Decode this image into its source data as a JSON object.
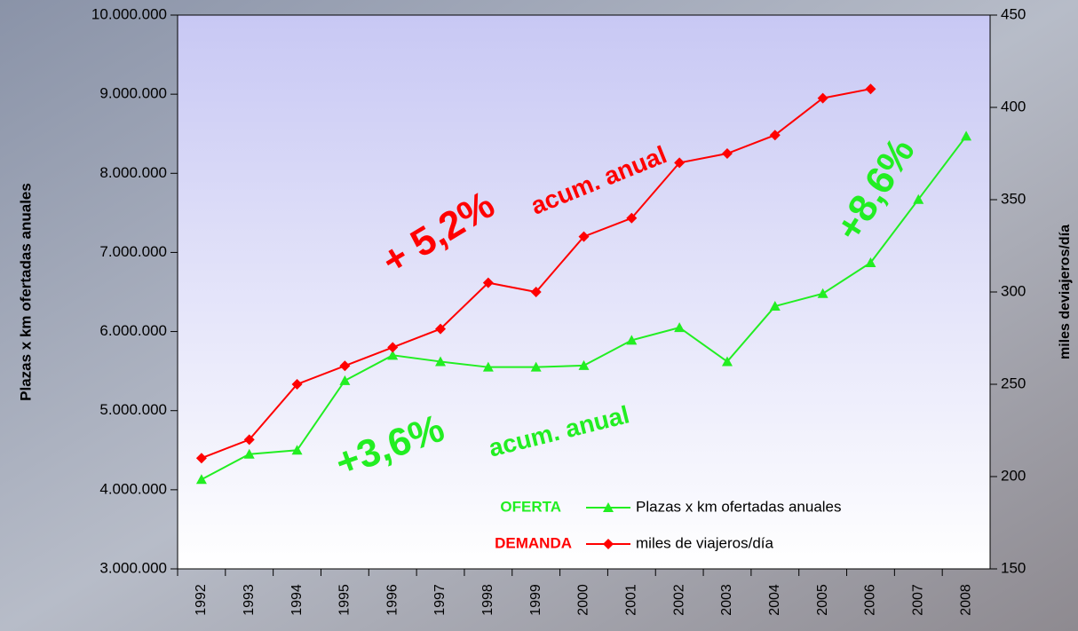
{
  "chart_data": {
    "type": "line",
    "categories": [
      "1992",
      "1993",
      "1994",
      "1995",
      "1996",
      "1997",
      "1998",
      "1999",
      "2000",
      "2001",
      "2002",
      "2003",
      "2004",
      "2005",
      "2006",
      "2007",
      "2008"
    ],
    "series": [
      {
        "name": "Plazas x km ofertadas anuales",
        "color": "#22ee22",
        "marker": "triangle",
        "axis": "y",
        "values": [
          4130000,
          4450000,
          4500000,
          5380000,
          5700000,
          5620000,
          5550000,
          5550000,
          5570000,
          5890000,
          6050000,
          5620000,
          6320000,
          6480000,
          6870000,
          7670000,
          8470000
        ]
      },
      {
        "name": "miles de viajeros/día",
        "color": "#ff0000",
        "marker": "diamond",
        "axis": "y2",
        "values": [
          210,
          220,
          250,
          260,
          270,
          280,
          305,
          300,
          330,
          340,
          370,
          375,
          385,
          405,
          410,
          null,
          null
        ]
      }
    ],
    "ylabel": "Plazas x km ofertadas anuales",
    "y2label": "miles deviajeros/día",
    "ylim": [
      3000000,
      10000000
    ],
    "yticks": [
      {
        "value": 3000000,
        "label": "3.000.000"
      },
      {
        "value": 4000000,
        "label": "4.000.000"
      },
      {
        "value": 5000000,
        "label": "5.000.000"
      },
      {
        "value": 6000000,
        "label": "6.000.000"
      },
      {
        "value": 7000000,
        "label": "7.000.000"
      },
      {
        "value": 8000000,
        "label": "8.000.000"
      },
      {
        "value": 9000000,
        "label": "9.000.000"
      },
      {
        "value": 10000000,
        "label": "10.000.000"
      }
    ],
    "y2lim": [
      150,
      450
    ],
    "y2ticks": [
      150,
      200,
      250,
      300,
      350,
      400,
      450
    ],
    "annotations": [
      "+ 5,2%",
      "acum. anual",
      "+3,6%",
      "acum. anual",
      "+8,6%",
      "OFERTA",
      "DEMANDA"
    ]
  }
}
